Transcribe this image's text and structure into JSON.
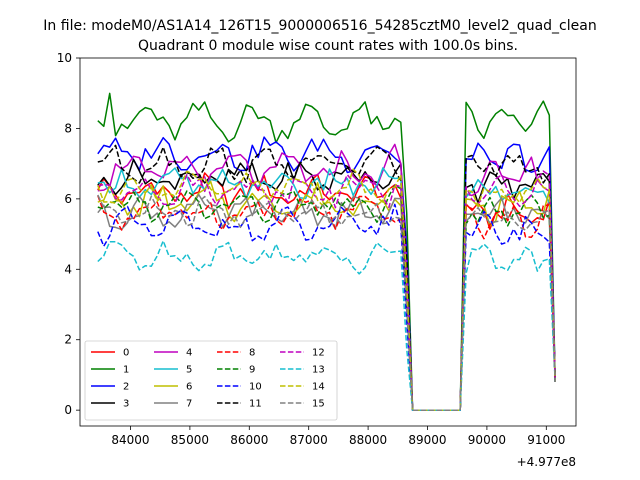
{
  "chart_data": {
    "type": "line",
    "suptitle": "In file: modeM0/AS1A14_126T15_9000006516_54285cztM0_level2_quad_clean",
    "title": "Quadrant 0 module wise count rates with 100.0s bins.",
    "xlabel": "",
    "ylabel": "",
    "x_offset_label": "+4.977e8",
    "xlim": [
      83150,
      91500
    ],
    "ylim": [
      -0.45,
      10.0
    ],
    "xticks": [
      84000,
      85000,
      86000,
      87000,
      88000,
      89000,
      90000,
      91000
    ],
    "xtick_labels": [
      "84000",
      "85000",
      "86000",
      "87000",
      "88000",
      "89000",
      "90000",
      "91000"
    ],
    "yticks": [
      0,
      2,
      4,
      6,
      8,
      10
    ],
    "ytick_labels": [
      "0",
      "2",
      "4",
      "6",
      "8",
      "10"
    ],
    "bin_width_s": 100,
    "segments": [
      {
        "start": 83450,
        "end": 88550,
        "gap_to": 89550,
        "gap_level": 0
      },
      {
        "start": 89650,
        "end": 91150
      }
    ],
    "legend_position": "lower-left",
    "series": [
      {
        "name": "0",
        "color": "#ff0000",
        "dash": "solid",
        "base": 6.2,
        "base2": 5.6,
        "amp": 0.25,
        "phase": 1.3
      },
      {
        "name": "1",
        "color": "#008000",
        "dash": "solid",
        "base": 8.2,
        "base2": 8.2,
        "amp": 0.35,
        "phase": 2.1
      },
      {
        "name": "2",
        "color": "#0000ff",
        "dash": "solid",
        "base": 7.3,
        "base2": 7.1,
        "amp": 0.3,
        "phase": 0.4
      },
      {
        "name": "3",
        "color": "#000000",
        "dash": "solid",
        "base": 6.6,
        "base2": 6.4,
        "amp": 0.25,
        "phase": 3.3
      },
      {
        "name": "4",
        "color": "#bf00bf",
        "dash": "solid",
        "base": 6.8,
        "base2": 6.6,
        "amp": 0.35,
        "phase": 4.2
      },
      {
        "name": "5",
        "color": "#17becf",
        "dash": "solid",
        "base": 6.4,
        "base2": 6.2,
        "amp": 0.25,
        "phase": 5.1
      },
      {
        "name": "6",
        "color": "#bfbf00",
        "dash": "solid",
        "base": 5.9,
        "base2": 5.8,
        "amp": 0.3,
        "phase": 0.9
      },
      {
        "name": "7",
        "color": "#808080",
        "dash": "solid",
        "base": 5.6,
        "base2": 5.6,
        "amp": 0.25,
        "phase": 2.7
      },
      {
        "name": "8",
        "color": "#ff0000",
        "dash": "dashed",
        "base": 5.6,
        "base2": 5.4,
        "amp": 0.25,
        "phase": 1.8
      },
      {
        "name": "9",
        "color": "#008000",
        "dash": "dashed",
        "base": 5.8,
        "base2": 5.6,
        "amp": 0.25,
        "phase": 3.9
      },
      {
        "name": "10",
        "color": "#0000ff",
        "dash": "dashed",
        "base": 5.2,
        "base2": 5.1,
        "amp": 0.3,
        "phase": 4.6
      },
      {
        "name": "11",
        "color": "#000000",
        "dash": "dashed",
        "base": 7.0,
        "base2": 6.9,
        "amp": 0.3,
        "phase": 0.2
      },
      {
        "name": "12",
        "color": "#bf00bf",
        "dash": "dashed",
        "base": 6.3,
        "base2": 6.2,
        "amp": 0.3,
        "phase": 2.4
      },
      {
        "name": "13",
        "color": "#17becf",
        "dash": "dashed",
        "base": 4.4,
        "base2": 4.3,
        "amp": 0.25,
        "phase": 5.5
      },
      {
        "name": "14",
        "color": "#bfbf00",
        "dash": "dashed",
        "base": 6.3,
        "base2": 6.2,
        "amp": 0.25,
        "phase": 3.1
      },
      {
        "name": "15",
        "color": "#808080",
        "dash": "dashed",
        "base": 5.6,
        "base2": 5.4,
        "amp": 0.25,
        "phase": 1.1
      }
    ]
  }
}
